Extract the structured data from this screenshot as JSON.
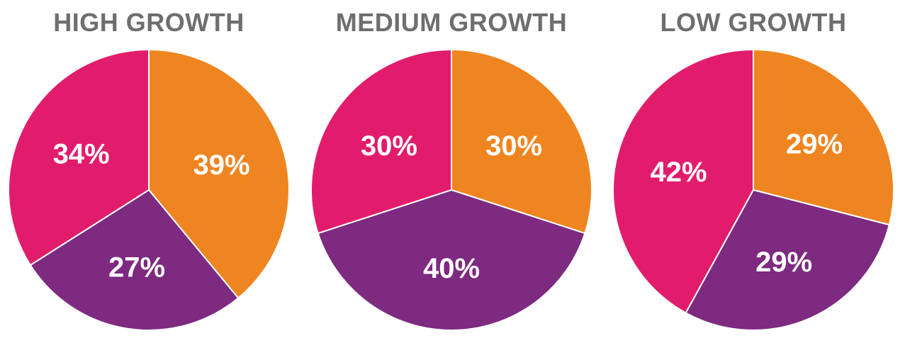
{
  "colors": {
    "orange": "#ef8520",
    "purple": "#7d2a80",
    "pink": "#e21c6c",
    "title": "#6d6e70",
    "label": "#ffffff"
  },
  "chart_data": [
    {
      "type": "pie",
      "title": "HIGH GROWTH",
      "slices": [
        {
          "value": 39,
          "label": "39%",
          "color": "#ef8520"
        },
        {
          "value": 27,
          "label": "27%",
          "color": "#7d2a80"
        },
        {
          "value": 34,
          "label": "34%",
          "color": "#e21c6c"
        }
      ]
    },
    {
      "type": "pie",
      "title": "MEDIUM GROWTH",
      "slices": [
        {
          "value": 30,
          "label": "30%",
          "color": "#ef8520"
        },
        {
          "value": 40,
          "label": "40%",
          "color": "#7d2a80"
        },
        {
          "value": 30,
          "label": "30%",
          "color": "#e21c6c"
        }
      ]
    },
    {
      "type": "pie",
      "title": "LOW GROWTH",
      "slices": [
        {
          "value": 29,
          "label": "29%",
          "color": "#ef8520"
        },
        {
          "value": 29,
          "label": "29%",
          "color": "#7d2a80"
        },
        {
          "value": 42,
          "label": "42%",
          "color": "#e21c6c"
        }
      ]
    }
  ]
}
